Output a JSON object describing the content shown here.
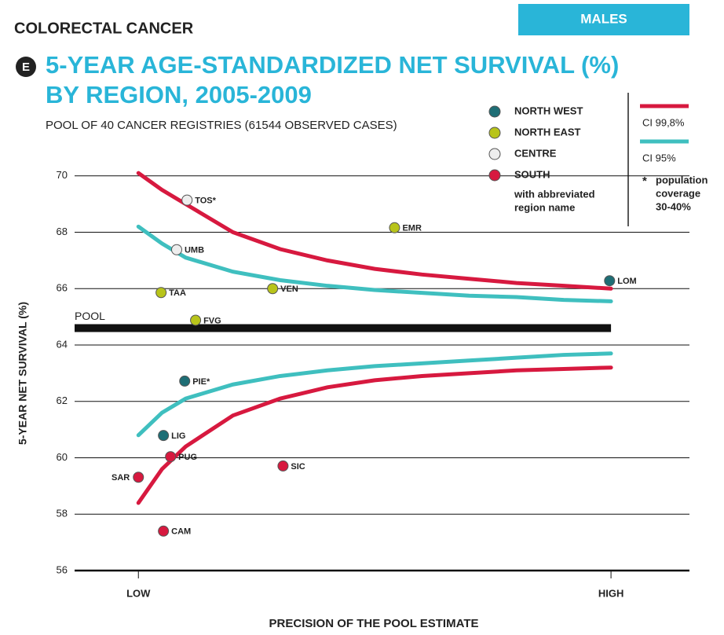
{
  "header": "COLORECTAL CANCER",
  "tab": "MALES",
  "badge": "E",
  "chart_data": {
    "type": "funnel",
    "title": [
      "5-YEAR AGE-STANDARDIZED NET SURVIVAL (%)",
      "BY REGION, 2005-2009"
    ],
    "subtitle": "POOL OF 40 CANCER REGISTRIES (61544 OBSERVED CASES)",
    "y_label": "5-YEAR NET SURVIVAL (%)",
    "x_label": "PRECISION OF THE POOL ESTIMATE",
    "xlim": [
      -0.135,
      1.166
    ],
    "xticks": [
      {
        "value": 0,
        "label": "LOW"
      },
      {
        "value": 1,
        "label": "HIGH"
      }
    ],
    "ylim": [
      56,
      70.3
    ],
    "yticks": [
      56,
      58,
      60,
      62,
      64,
      66,
      68,
      70
    ],
    "grid": true,
    "pool": {
      "label": "POOL",
      "value": 64.6,
      "color": "#111111"
    },
    "band_x": [
      0,
      0.05,
      0.1,
      0.2,
      0.3,
      0.4,
      0.5,
      0.6,
      0.7,
      0.8,
      0.9,
      1
    ],
    "bands": [
      {
        "name": "CI 99,8%",
        "color": "#d7193f",
        "upper": [
          70.1,
          69.5,
          69.0,
          68.0,
          67.4,
          67.0,
          66.7,
          66.5,
          66.35,
          66.2,
          66.1,
          66.0
        ],
        "lower": [
          58.4,
          59.6,
          60.4,
          61.5,
          62.1,
          62.5,
          62.75,
          62.9,
          63.0,
          63.1,
          63.15,
          63.2
        ]
      },
      {
        "name": "CI 95%",
        "color": "#3fbfbf",
        "upper": [
          68.2,
          67.6,
          67.1,
          66.6,
          66.3,
          66.1,
          65.95,
          65.85,
          65.75,
          65.7,
          65.6,
          65.55
        ],
        "lower": [
          60.8,
          61.6,
          62.1,
          62.6,
          62.9,
          63.1,
          63.25,
          63.35,
          63.45,
          63.55,
          63.65,
          63.7
        ]
      }
    ],
    "series": [
      {
        "name": "NORTH WEST",
        "color": "#1e6e75",
        "labels": [
          "LOM",
          "PIE*",
          "LIG"
        ],
        "x": [
          0.997,
          0.098,
          0.053
        ],
        "values": [
          66.28,
          62.72,
          60.79
        ]
      },
      {
        "name": "NORTH EAST",
        "color": "#b8c41a",
        "labels": [
          "TAA",
          "VEN",
          "FVG",
          "EMR"
        ],
        "x": [
          0.048,
          0.284,
          0.121,
          0.542
        ],
        "values": [
          65.86,
          66.0,
          64.88,
          68.16
        ]
      },
      {
        "name": "CENTRE",
        "color": "#eeeeee",
        "labels": [
          "TOS*",
          "UMB"
        ],
        "x": [
          0.103,
          0.081
        ],
        "values": [
          69.14,
          67.38
        ]
      },
      {
        "name": "SOUTH",
        "color": "#d7193f",
        "labels": [
          "PUG",
          "SAR",
          "SIC",
          "CAM"
        ],
        "x": [
          0.068,
          0,
          0.306,
          0.053
        ],
        "values": [
          60.04,
          59.31,
          59.71,
          57.4
        ]
      }
    ],
    "legend_note": [
      "with abbreviated",
      "region name"
    ],
    "footnote": {
      "mark": "*",
      "lines": [
        "population",
        "coverage",
        "30-40%"
      ]
    }
  }
}
